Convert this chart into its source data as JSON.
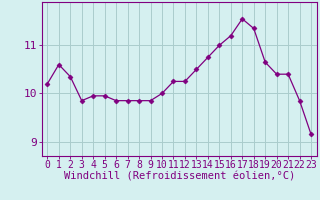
{
  "x": [
    0,
    1,
    2,
    3,
    4,
    5,
    6,
    7,
    8,
    9,
    10,
    11,
    12,
    13,
    14,
    15,
    16,
    17,
    18,
    19,
    20,
    21,
    22,
    23
  ],
  "y": [
    10.2,
    10.6,
    10.35,
    9.85,
    9.95,
    9.95,
    9.85,
    9.85,
    9.85,
    9.85,
    10.0,
    10.25,
    10.25,
    10.5,
    10.75,
    11.0,
    11.2,
    11.55,
    11.35,
    10.65,
    10.4,
    10.4,
    9.85,
    9.15
  ],
  "line_color": "#800080",
  "marker": "D",
  "marker_size": 2.5,
  "bg_color": "#d5f0f0",
  "grid_color": "#aacccc",
  "xlabel": "Windchill (Refroidissement éolien,°C)",
  "xlabel_color": "#800080",
  "ylabel_ticks": [
    9,
    10,
    11
  ],
  "ylim": [
    8.7,
    11.9
  ],
  "xlim": [
    -0.5,
    23.5
  ],
  "tick_color": "#800080",
  "axis_color": "#800080",
  "font_size": 7.0,
  "xlabel_fontsize": 7.5
}
